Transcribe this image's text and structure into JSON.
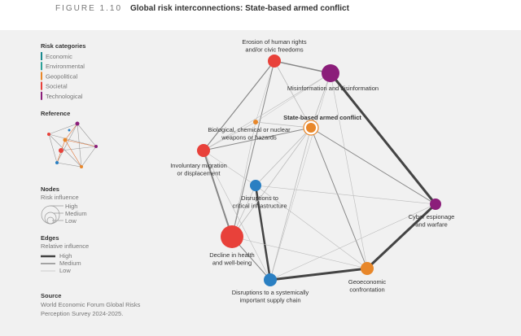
{
  "header": {
    "figure_label": "FIGURE 1.10",
    "title": "Global risk interconnections: State-based armed conflict"
  },
  "legend": {
    "title": "Risk categories",
    "categories": [
      "Economic",
      "Environmental",
      "Geopolitical",
      "Societal",
      "Technological"
    ]
  },
  "reference": {
    "title": "Reference"
  },
  "nodes_legend": {
    "title": "Nodes",
    "subtitle": "Risk influence",
    "levels": [
      "High",
      "Medium",
      "Low"
    ]
  },
  "edges_legend": {
    "title": "Edges",
    "subtitle": "Relative influence",
    "levels": [
      "High",
      "Medium",
      "Low"
    ]
  },
  "source": {
    "title": "Source",
    "lines": [
      "World Economic Forum Global Risks",
      "Perception Survey 2024-2025."
    ]
  },
  "nodes": [
    {
      "label": [
        "Erosion of human rights",
        "and/or civic freedoms"
      ]
    },
    {
      "label": [
        "Misinformation and disinformation"
      ]
    },
    {
      "label": [
        "State-based armed conflict"
      ]
    },
    {
      "label": [
        "Biological, chemical or nuclear",
        "weapons or hazards"
      ]
    },
    {
      "label": [
        "Involuntary migration",
        "or displacement"
      ]
    },
    {
      "label": [
        "Disruptions to",
        "critical infrastructure"
      ]
    },
    {
      "label": [
        "Cyber espionage",
        "and warfare"
      ]
    },
    {
      "label": [
        "Decline in health",
        "and well-being"
      ]
    },
    {
      "label": [
        "Geoeconomic",
        "confrontation"
      ]
    },
    {
      "label": [
        "Disruptions to a systemically",
        "important supply chain"
      ]
    }
  ]
}
